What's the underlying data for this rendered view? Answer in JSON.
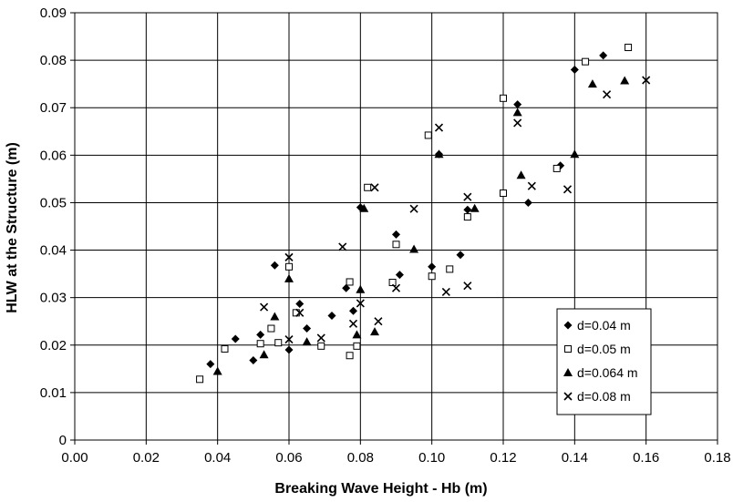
{
  "chart_data": {
    "type": "scatter",
    "title": "",
    "xlabel": "Breaking Wave Height - Hb (m)",
    "ylabel": "HLW at the Structure (m)",
    "xlim": [
      0,
      0.18
    ],
    "ylim": [
      0,
      0.09
    ],
    "x_ticks": [
      "0.00",
      "0.02",
      "0.04",
      "0.06",
      "0.08",
      "0.10",
      "0.12",
      "0.14",
      "0.16",
      "0.18"
    ],
    "y_ticks": [
      "0",
      "0.01",
      "0.02",
      "0.03",
      "0.04",
      "0.05",
      "0.06",
      "0.07",
      "0.08",
      "0.09"
    ],
    "grid": true,
    "legend_position": "bottom-right",
    "series": [
      {
        "name": "d=0.04 m",
        "marker": "diamond",
        "color": "#000000",
        "points": [
          [
            0.038,
            0.016
          ],
          [
            0.045,
            0.0213
          ],
          [
            0.05,
            0.0168
          ],
          [
            0.052,
            0.0222
          ],
          [
            0.056,
            0.0368
          ],
          [
            0.06,
            0.019
          ],
          [
            0.063,
            0.0287
          ],
          [
            0.065,
            0.0235
          ],
          [
            0.072,
            0.0262
          ],
          [
            0.076,
            0.032
          ],
          [
            0.078,
            0.0272
          ],
          [
            0.08,
            0.049
          ],
          [
            0.09,
            0.0433
          ],
          [
            0.091,
            0.0348
          ],
          [
            0.1,
            0.0365
          ],
          [
            0.102,
            0.0602
          ],
          [
            0.108,
            0.039
          ],
          [
            0.11,
            0.0485
          ],
          [
            0.124,
            0.0707
          ],
          [
            0.127,
            0.05
          ],
          [
            0.136,
            0.0578
          ],
          [
            0.14,
            0.078
          ],
          [
            0.148,
            0.081
          ]
        ]
      },
      {
        "name": "d=0.05 m",
        "marker": "square-open",
        "color": "#000000",
        "points": [
          [
            0.035,
            0.0128
          ],
          [
            0.042,
            0.0192
          ],
          [
            0.052,
            0.0203
          ],
          [
            0.055,
            0.0235
          ],
          [
            0.057,
            0.0205
          ],
          [
            0.06,
            0.0365
          ],
          [
            0.062,
            0.0268
          ],
          [
            0.069,
            0.0198
          ],
          [
            0.077,
            0.0178
          ],
          [
            0.077,
            0.0333
          ],
          [
            0.079,
            0.0198
          ],
          [
            0.082,
            0.0532
          ],
          [
            0.089,
            0.0332
          ],
          [
            0.09,
            0.0412
          ],
          [
            0.099,
            0.0642
          ],
          [
            0.1,
            0.0345
          ],
          [
            0.105,
            0.036
          ],
          [
            0.11,
            0.047
          ],
          [
            0.12,
            0.072
          ],
          [
            0.12,
            0.052
          ],
          [
            0.135,
            0.0572
          ],
          [
            0.143,
            0.0797
          ],
          [
            0.155,
            0.0827
          ]
        ]
      },
      {
        "name": "d=0.064 m",
        "marker": "triangle",
        "color": "#000000",
        "points": [
          [
            0.04,
            0.0145
          ],
          [
            0.053,
            0.018
          ],
          [
            0.056,
            0.026
          ],
          [
            0.06,
            0.034
          ],
          [
            0.065,
            0.0207
          ],
          [
            0.079,
            0.0222
          ],
          [
            0.08,
            0.0317
          ],
          [
            0.081,
            0.0488
          ],
          [
            0.084,
            0.0228
          ],
          [
            0.095,
            0.0402
          ],
          [
            0.102,
            0.0602
          ],
          [
            0.112,
            0.0488
          ],
          [
            0.124,
            0.069
          ],
          [
            0.125,
            0.0558
          ],
          [
            0.14,
            0.0602
          ],
          [
            0.145,
            0.075
          ],
          [
            0.154,
            0.0757
          ]
        ]
      },
      {
        "name": "d=0.08 m",
        "marker": "x",
        "color": "#000000",
        "points": [
          [
            0.053,
            0.028
          ],
          [
            0.06,
            0.0212
          ],
          [
            0.06,
            0.0385
          ],
          [
            0.063,
            0.0268
          ],
          [
            0.069,
            0.0215
          ],
          [
            0.075,
            0.0407
          ],
          [
            0.078,
            0.0245
          ],
          [
            0.08,
            0.0288
          ],
          [
            0.084,
            0.0532
          ],
          [
            0.085,
            0.025
          ],
          [
            0.095,
            0.0487
          ],
          [
            0.09,
            0.032
          ],
          [
            0.102,
            0.0658
          ],
          [
            0.104,
            0.0312
          ],
          [
            0.11,
            0.0512
          ],
          [
            0.11,
            0.0325
          ],
          [
            0.124,
            0.0668
          ],
          [
            0.128,
            0.0535
          ],
          [
            0.138,
            0.0528
          ],
          [
            0.149,
            0.0728
          ],
          [
            0.16,
            0.0758
          ]
        ]
      }
    ]
  }
}
